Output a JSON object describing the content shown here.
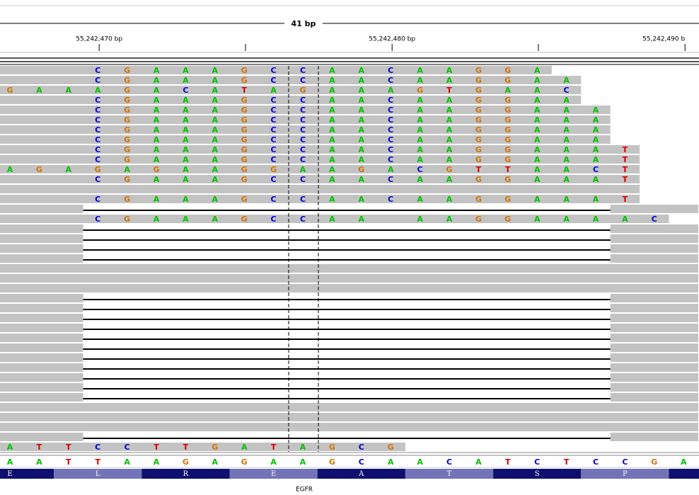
{
  "ruler": {
    "span": "41 bp",
    "ticks": [
      "55,242,470 bp",
      "55,242,480 bp",
      "55,242,490 b"
    ]
  },
  "base_colors": {
    "A": "#00c000",
    "C": "#0000d0",
    "G": "#d17105",
    "T": "#d00000"
  },
  "reads": [
    {
      "start": 0,
      "end": 19,
      "from": 3,
      "bases": [
        "C",
        "G",
        "A",
        "A",
        "A",
        "G",
        "C",
        "C",
        "A",
        "A",
        "C",
        "A",
        "A",
        "G",
        "G",
        "A"
      ]
    },
    {
      "start": 0,
      "end": 20,
      "from": 3,
      "bases": [
        "C",
        "G",
        "A",
        "A",
        "A",
        "G",
        "C",
        "C",
        "A",
        "A",
        "C",
        "A",
        "A",
        "G",
        "G",
        "A",
        "A"
      ]
    },
    {
      "start": 0,
      "end": 20,
      "from": 0,
      "bases": [
        "G",
        "A",
        "A",
        "A",
        "G",
        "A",
        "C",
        "A",
        "T",
        "A",
        "G",
        "A",
        "A",
        "A",
        "G",
        "T",
        "G",
        "A",
        "A",
        "C"
      ]
    },
    {
      "start": 0,
      "end": 20,
      "from": 3,
      "bases": [
        "C",
        "G",
        "A",
        "A",
        "A",
        "G",
        "C",
        "C",
        "A",
        "A",
        "C",
        "A",
        "A",
        "G",
        "G",
        "A",
        "A"
      ]
    },
    {
      "start": 0,
      "end": 21,
      "from": 3,
      "bases": [
        "C",
        "G",
        "A",
        "A",
        "A",
        "G",
        "C",
        "C",
        "A",
        "A",
        "C",
        "A",
        "A",
        "G",
        "G",
        "A",
        "A",
        "A"
      ]
    },
    {
      "start": 0,
      "end": 21,
      "from": 3,
      "bases": [
        "C",
        "G",
        "A",
        "A",
        "A",
        "G",
        "C",
        "C",
        "A",
        "A",
        "C",
        "A",
        "A",
        "G",
        "G",
        "A",
        "A",
        "A"
      ]
    },
    {
      "start": 0,
      "end": 21,
      "from": 3,
      "bases": [
        "C",
        "G",
        "A",
        "A",
        "A",
        "G",
        "C",
        "C",
        "A",
        "A",
        "C",
        "A",
        "A",
        "G",
        "G",
        "A",
        "A",
        "A"
      ]
    },
    {
      "start": 0,
      "end": 21,
      "from": 3,
      "bases": [
        "C",
        "G",
        "A",
        "A",
        "A",
        "G",
        "C",
        "C",
        "A",
        "A",
        "C",
        "A",
        "A",
        "G",
        "G",
        "A",
        "A",
        "A"
      ]
    },
    {
      "start": 0,
      "end": 22,
      "from": 3,
      "bases": [
        "C",
        "G",
        "A",
        "A",
        "A",
        "G",
        "C",
        "C",
        "A",
        "A",
        "C",
        "A",
        "A",
        "G",
        "G",
        "A",
        "A",
        "A",
        "T"
      ]
    },
    {
      "start": 0,
      "end": 22,
      "from": 3,
      "bases": [
        "C",
        "G",
        "A",
        "A",
        "A",
        "G",
        "C",
        "C",
        "A",
        "A",
        "C",
        "A",
        "A",
        "G",
        "G",
        "A",
        "A",
        "A",
        "T"
      ]
    },
    {
      "start": 0,
      "end": 22,
      "from": 0,
      "bases": [
        "A",
        "G",
        "A",
        "G",
        "A",
        "G",
        "A",
        "A",
        "G",
        "G",
        "A",
        "A",
        "G",
        "A",
        "C",
        "G",
        "T",
        "T",
        "A",
        "A",
        "C",
        "T"
      ]
    },
    {
      "start": 0,
      "end": 22,
      "from": 3,
      "bases": [
        "C",
        "G",
        "A",
        "A",
        "A",
        "G",
        "C",
        "C",
        "A",
        "A",
        "C",
        "A",
        "A",
        "G",
        "G",
        "A",
        "A",
        "A",
        "T"
      ]
    },
    {
      "start": 0,
      "end": 22
    },
    {
      "start": 0,
      "end": 22,
      "from": 3,
      "bases": [
        "C",
        "G",
        "A",
        "A",
        "A",
        "G",
        "C",
        "C",
        "A",
        "A",
        "C",
        "A",
        "A",
        "G",
        "G",
        "A",
        "A",
        "A",
        "T"
      ]
    },
    {
      "start": 0,
      "end": 24,
      "gap": [
        3,
        21
      ]
    },
    {
      "start": 0,
      "end": 23,
      "from": 3,
      "bases": [
        "C",
        "G",
        "A",
        "A",
        "A",
        "G",
        "C",
        "C",
        "A",
        "A",
        null,
        "A",
        "A",
        "G",
        "G",
        "A",
        "A",
        "A",
        "A",
        "C"
      ]
    },
    {
      "start": 0,
      "end": 24,
      "gap": [
        3,
        21
      ]
    },
    {
      "start": 0,
      "end": 24,
      "gap": [
        3,
        21
      ]
    },
    {
      "start": 0,
      "end": 24,
      "gap": [
        3,
        21
      ]
    },
    {
      "start": 0,
      "end": 24,
      "gap": [
        3,
        21
      ]
    },
    {
      "start": 0,
      "end": 24
    },
    {
      "start": 0,
      "end": 24
    },
    {
      "start": 0,
      "end": 24
    },
    {
      "start": 0,
      "end": 24,
      "gap": [
        3,
        21
      ]
    },
    {
      "start": 0,
      "end": 24,
      "gap": [
        3,
        21
      ]
    },
    {
      "start": 0,
      "end": 24,
      "gap": [
        3,
        21
      ]
    },
    {
      "start": 0,
      "end": 24,
      "gap": [
        3,
        21
      ]
    },
    {
      "start": 0,
      "end": 24,
      "gap": [
        3,
        21
      ]
    },
    {
      "start": 0,
      "end": 24,
      "gap": [
        3,
        21
      ]
    },
    {
      "start": 0,
      "end": 24,
      "gap": [
        3,
        21
      ]
    },
    {
      "start": 0,
      "end": 24,
      "gap": [
        3,
        21
      ]
    },
    {
      "start": 0,
      "end": 24,
      "gap": [
        3,
        21
      ]
    },
    {
      "start": 0,
      "end": 24,
      "gap": [
        3,
        21
      ]
    },
    {
      "start": 0,
      "end": 24,
      "gap": [
        3,
        21
      ]
    },
    {
      "start": 0,
      "end": 24
    },
    {
      "start": 0,
      "end": 24
    },
    {
      "start": 0,
      "end": 24
    },
    {
      "start": 0,
      "end": 24,
      "gap": [
        3,
        21
      ]
    },
    {
      "start": 0,
      "end": 14,
      "from": 0,
      "bases": [
        "A",
        "T",
        "T",
        "C",
        "C",
        "T",
        "T",
        "G",
        "A",
        "T",
        "A",
        "G",
        "C",
        "G"
      ]
    }
  ],
  "reference": [
    "A",
    "A",
    "T",
    "T",
    "A",
    "A",
    "G",
    "A",
    "G",
    "A",
    "A",
    "G",
    "C",
    "A",
    "A",
    "C",
    "A",
    "T",
    "C",
    "T",
    "C",
    "C",
    "G",
    "A"
  ],
  "amino_acids": [
    "E",
    "L",
    "R",
    "E",
    "A",
    "T",
    "S",
    "P"
  ],
  "gene": "EGFR"
}
